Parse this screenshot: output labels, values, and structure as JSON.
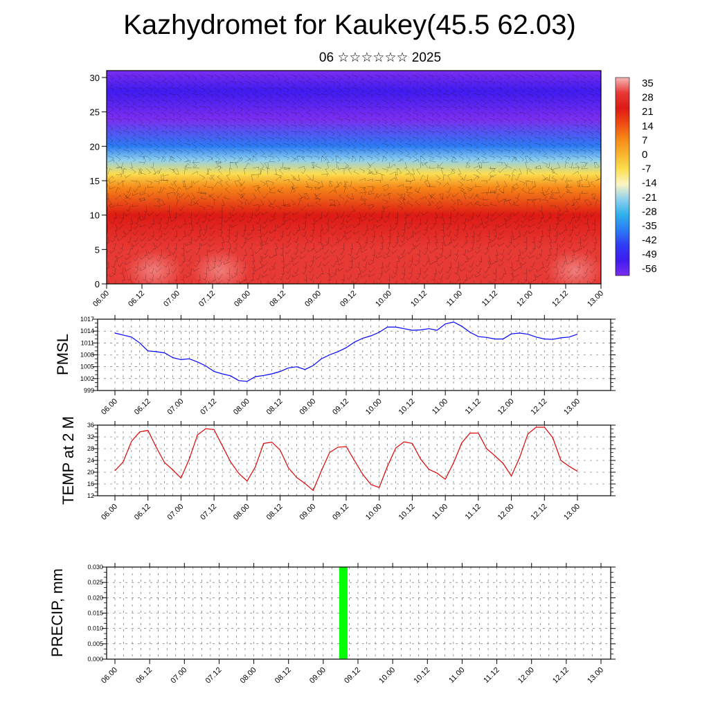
{
  "page": {
    "title": "Kazhydromet for Kaukey(45.5 62.03)",
    "subtitle": "06 ☆☆☆☆☆☆ 2025"
  },
  "x_tick_labels": [
    "06.00",
    "06.12",
    "07.00",
    "07.12",
    "08.00",
    "08.12",
    "09.00",
    "09.12",
    "10.00",
    "10.12",
    "11.00",
    "11.12",
    "12.00",
    "12.12",
    "13.00"
  ],
  "chart_data": [
    {
      "type": "heatmap",
      "title": "",
      "ylabel": "",
      "ylim": [
        0,
        31
      ],
      "y_ticks": [
        0,
        5,
        10,
        15,
        20,
        25,
        30
      ],
      "colorbar": {
        "labels": [
          "35",
          "28",
          "21",
          "14",
          "7",
          "0",
          "-7",
          "-14",
          "-21",
          "-28",
          "-35",
          "-42",
          "-49",
          "-56"
        ],
        "colors": [
          "#f4b8b8",
          "#e83a35",
          "#dd1a14",
          "#ef4a12",
          "#f68718",
          "#f9b32b",
          "#fbde4f",
          "#fdf5c2",
          "#8ed0ee",
          "#2fb1ec",
          "#2b7cf4",
          "#2e3cf3",
          "#3f1bf0",
          "#7b2df0"
        ]
      },
      "bands": [
        {
          "level": 0,
          "value": 30
        },
        {
          "level": 5,
          "value": 28
        },
        {
          "level": 10,
          "value": 21
        },
        {
          "level": 14,
          "value": 7
        },
        {
          "level": 16,
          "value": -7
        },
        {
          "level": 18,
          "value": -21
        },
        {
          "level": 20,
          "value": -35
        },
        {
          "level": 24,
          "value": -56
        },
        {
          "level": 28,
          "value": -49
        },
        {
          "level": 31,
          "value": -56
        }
      ]
    },
    {
      "type": "line",
      "ylabel": "PMSL",
      "ylim": [
        999,
        1017
      ],
      "y_ticks": [
        999,
        1002,
        1005,
        1008,
        1011,
        1014,
        1017
      ],
      "color": "#0000ff",
      "x": [
        0,
        3,
        6,
        9,
        12,
        15,
        18,
        21,
        24,
        27,
        30,
        33,
        36,
        39,
        42,
        45,
        48,
        51,
        54,
        57,
        60,
        63,
        66,
        69,
        72,
        75,
        78,
        81,
        84,
        87,
        90,
        93,
        96,
        99,
        102,
        105,
        108,
        111,
        114,
        117,
        120,
        123,
        126,
        129,
        132,
        135,
        138,
        141,
        144,
        147,
        150,
        153,
        156,
        159,
        162,
        165,
        168
      ],
      "values": [
        1013.5,
        1013,
        1012.5,
        1011,
        1009,
        1008.8,
        1008.5,
        1007.3,
        1006.8,
        1007,
        1006.2,
        1005.2,
        1003.8,
        1003.2,
        1002.7,
        1001.5,
        1001.3,
        1002.5,
        1002.8,
        1003.2,
        1003.8,
        1004.7,
        1005,
        1004.3,
        1005.3,
        1007,
        1008,
        1008.8,
        1009.8,
        1011.2,
        1012.2,
        1012.8,
        1013.7,
        1015,
        1015,
        1014.6,
        1014.2,
        1014.3,
        1014.6,
        1014.2,
        1015.8,
        1016.3,
        1015.2,
        1013.7,
        1012.6,
        1012.4,
        1012,
        1012,
        1013.3,
        1013.5,
        1013.2,
        1012.5,
        1012,
        1011.9,
        1012.3,
        1012.5,
        1013.2
      ]
    },
    {
      "type": "line",
      "ylabel": "TEMP at 2 M",
      "ylim": [
        12,
        36
      ],
      "y_ticks": [
        12,
        16,
        20,
        24,
        28,
        32,
        36
      ],
      "color": "#e00000",
      "x": [
        0,
        3,
        6,
        9,
        12,
        15,
        18,
        21,
        24,
        27,
        30,
        33,
        36,
        39,
        42,
        45,
        48,
        51,
        54,
        57,
        60,
        63,
        66,
        69,
        72,
        75,
        78,
        81,
        84,
        87,
        90,
        93,
        96,
        99,
        102,
        105,
        108,
        111,
        114,
        117,
        120,
        123,
        126,
        129,
        132,
        135,
        138,
        141,
        144,
        147,
        150,
        153,
        156,
        159,
        162,
        165,
        168
      ],
      "values": [
        20.5,
        23.5,
        30.5,
        33.7,
        34.2,
        28.5,
        23.3,
        20.8,
        18,
        24.5,
        32.7,
        34.8,
        34.5,
        29,
        23.5,
        19.6,
        17,
        21.8,
        29.8,
        30.2,
        27.5,
        21.5,
        18.2,
        16.2,
        13.8,
        20.5,
        26.7,
        28.5,
        28.7,
        24,
        19.3,
        15.8,
        14.8,
        22,
        28.2,
        30.3,
        29.8,
        24.5,
        21,
        19.7,
        17.6,
        23.2,
        30,
        33.3,
        33.3,
        28,
        25.6,
        23,
        18.7,
        25,
        33,
        35.3,
        35.3,
        31.8,
        24,
        22,
        20.3
      ]
    },
    {
      "type": "bar",
      "ylabel": "PRECIP, mm",
      "ylim": [
        0,
        0.03
      ],
      "y_ticks": [
        "0.000",
        "0.005",
        "0.010",
        "0.015",
        "0.020",
        "0.025",
        "0.030"
      ],
      "color": "#00ff00",
      "x": [
        78
      ],
      "values": [
        0.03
      ]
    }
  ]
}
